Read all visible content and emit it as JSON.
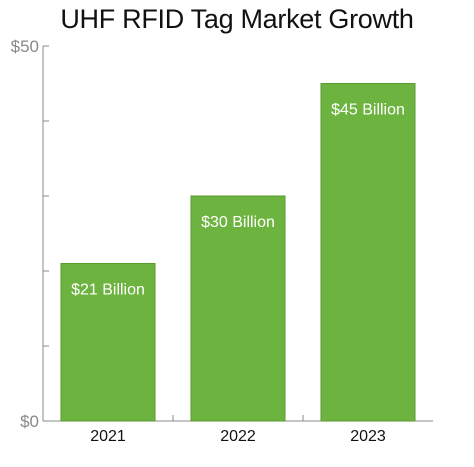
{
  "chart_data": {
    "type": "bar",
    "title": "UHF RFID Tag Market Growth",
    "categories": [
      "2021",
      "2022",
      "2023"
    ],
    "values": [
      21,
      30,
      45
    ],
    "data_labels": [
      "$21 Billion",
      "$30 Billion",
      "$45 Billion"
    ],
    "ylim": [
      0,
      50
    ],
    "y_tick_values": [
      0,
      10,
      20,
      30,
      40,
      50
    ],
    "y_tick_labels": [
      "$0",
      "",
      "",
      "",
      "",
      "$50"
    ],
    "grid": false,
    "legend": "none",
    "bar_color": "#6db33f",
    "bar_edge_color": "#5a9a2f",
    "axis_color": "#888888"
  }
}
